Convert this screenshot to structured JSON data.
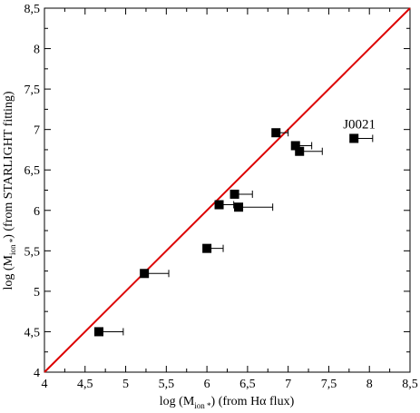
{
  "chart_data": {
    "type": "scatter",
    "title": "",
    "xlabel": {
      "prefix": "log (M",
      "sub": "ion *",
      "suffix": ") (from Hα  flux)"
    },
    "ylabel": {
      "prefix": "log (M",
      "sub": "ion *",
      "suffix": ")  (from STARLIGHT fitting)"
    },
    "xlim": [
      4,
      8.5
    ],
    "ylim": [
      4,
      8.5
    ],
    "x_ticks": [
      4,
      4.5,
      5,
      5.5,
      6,
      6.5,
      7,
      7.5,
      8,
      8.5
    ],
    "y_ticks": [
      4,
      4.5,
      5,
      5.5,
      6,
      6.5,
      7,
      7.5,
      8,
      8.5
    ],
    "x_tick_labels": [
      "4",
      "4,5",
      "5",
      "5,5",
      "6",
      "6,5",
      "7",
      "7,5",
      "8",
      "8,5"
    ],
    "y_tick_labels": [
      "4",
      "4,5",
      "5",
      "5,5",
      "6",
      "6,5",
      "7",
      "7,5",
      "8",
      "8,5"
    ],
    "grid": false,
    "marker": "square",
    "marker_color": "#000000",
    "line_color": "#dd0000",
    "reference_line": {
      "type": "one-to-one",
      "from": [
        4,
        4
      ],
      "to": [
        8.5,
        8.5
      ]
    },
    "points": [
      {
        "x": 4.67,
        "y": 4.5,
        "xerr": 0.3
      },
      {
        "x": 5.23,
        "y": 5.22,
        "xerr": 0.3
      },
      {
        "x": 6.0,
        "y": 5.53,
        "xerr": 0.2
      },
      {
        "x": 6.15,
        "y": 6.07,
        "xerr": 0.18
      },
      {
        "x": 6.34,
        "y": 6.2,
        "xerr": 0.22
      },
      {
        "x": 6.39,
        "y": 6.04,
        "xerr": 0.42
      },
      {
        "x": 6.85,
        "y": 6.96,
        "xerr": 0.15
      },
      {
        "x": 7.09,
        "y": 6.8,
        "xerr": 0.2
      },
      {
        "x": 7.14,
        "y": 6.73,
        "xerr": 0.28
      },
      {
        "x": 7.81,
        "y": 6.89,
        "xerr": 0.23,
        "label": "J0021"
      }
    ]
  }
}
